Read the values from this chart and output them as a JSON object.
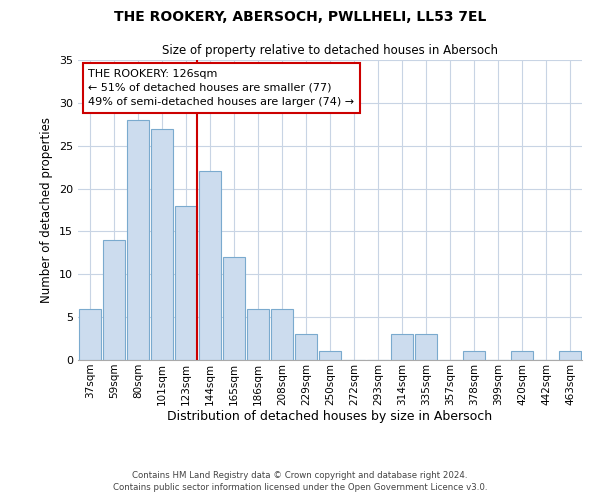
{
  "title": "THE ROOKERY, ABERSOCH, PWLLHELI, LL53 7EL",
  "subtitle": "Size of property relative to detached houses in Abersoch",
  "xlabel": "Distribution of detached houses by size in Abersoch",
  "ylabel": "Number of detached properties",
  "bar_labels": [
    "37sqm",
    "59sqm",
    "80sqm",
    "101sqm",
    "123sqm",
    "144sqm",
    "165sqm",
    "186sqm",
    "208sqm",
    "229sqm",
    "250sqm",
    "272sqm",
    "293sqm",
    "314sqm",
    "335sqm",
    "357sqm",
    "378sqm",
    "399sqm",
    "420sqm",
    "442sqm",
    "463sqm"
  ],
  "bar_values": [
    6,
    14,
    28,
    27,
    18,
    22,
    12,
    6,
    6,
    3,
    1,
    0,
    0,
    3,
    3,
    0,
    1,
    0,
    1,
    0,
    1
  ],
  "bar_color": "#ccdcee",
  "bar_edge_color": "#7aaace",
  "marker_index": 4,
  "marker_line_color": "#cc0000",
  "ylim": [
    0,
    35
  ],
  "yticks": [
    0,
    5,
    10,
    15,
    20,
    25,
    30,
    35
  ],
  "annotation_line1": "THE ROOKERY: 126sqm",
  "annotation_line2": "← 51% of detached houses are smaller (77)",
  "annotation_line3": "49% of semi-detached houses are larger (74) →",
  "annotation_box_edge": "#cc0000",
  "footer_line1": "Contains HM Land Registry data © Crown copyright and database right 2024.",
  "footer_line2": "Contains public sector information licensed under the Open Government Licence v3.0.",
  "background_color": "#ffffff",
  "grid_color": "#c8d4e4"
}
